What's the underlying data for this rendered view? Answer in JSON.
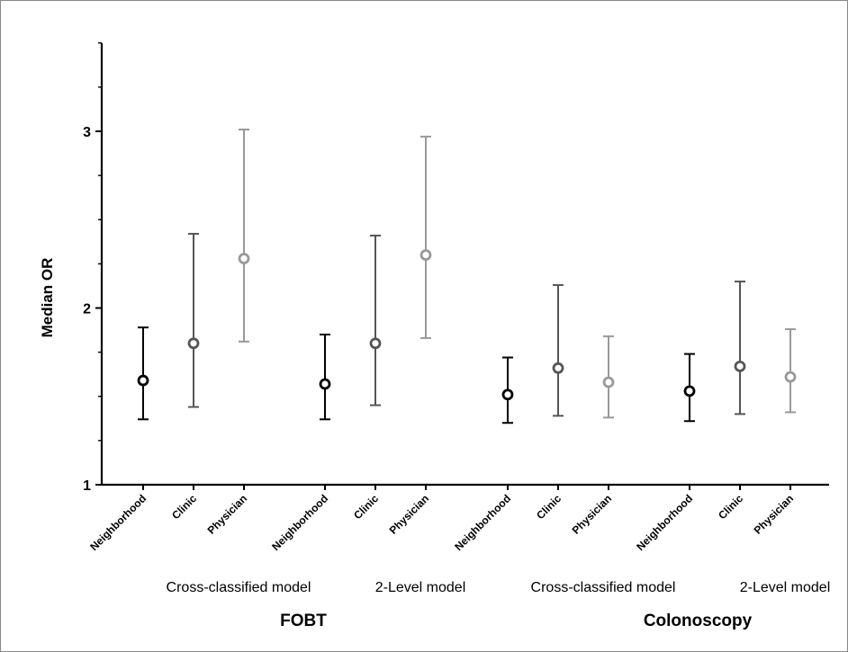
{
  "chart_data": {
    "type": "scatter",
    "ylabel": "Median OR",
    "ylim": [
      1,
      3.5
    ],
    "yticks": [
      "1",
      "2",
      "3"
    ],
    "ytick_values": [
      1,
      2,
      3
    ],
    "grid": false,
    "legend": "none",
    "colors": {
      "Neighborhood": "#000000",
      "Clinic": "#555555",
      "Physician": "#999999"
    },
    "groups": [
      {
        "outcome": "FOBT",
        "model": "Cross-classified model",
        "points": [
          {
            "category": "Neighborhood",
            "median": 1.59,
            "lower": 1.37,
            "upper": 1.89
          },
          {
            "category": "Clinic",
            "median": 1.8,
            "lower": 1.44,
            "upper": 2.42
          },
          {
            "category": "Physician",
            "median": 2.28,
            "lower": 1.81,
            "upper": 3.01
          }
        ]
      },
      {
        "outcome": "FOBT",
        "model": "2-Level model",
        "points": [
          {
            "category": "Neighborhood",
            "median": 1.57,
            "lower": 1.37,
            "upper": 1.85
          },
          {
            "category": "Clinic",
            "median": 1.8,
            "lower": 1.45,
            "upper": 2.41
          },
          {
            "category": "Physician",
            "median": 2.3,
            "lower": 1.83,
            "upper": 2.97
          }
        ]
      },
      {
        "outcome": "Colonoscopy",
        "model": "Cross-classified model",
        "points": [
          {
            "category": "Neighborhood",
            "median": 1.51,
            "lower": 1.35,
            "upper": 1.72
          },
          {
            "category": "Clinic",
            "median": 1.66,
            "lower": 1.39,
            "upper": 2.13
          },
          {
            "category": "Physician",
            "median": 1.58,
            "lower": 1.38,
            "upper": 1.84
          }
        ]
      },
      {
        "outcome": "Colonoscopy",
        "model": "2-Level model",
        "points": [
          {
            "category": "Neighborhood",
            "median": 1.53,
            "lower": 1.36,
            "upper": 1.74
          },
          {
            "category": "Clinic",
            "median": 1.67,
            "lower": 1.4,
            "upper": 2.15
          },
          {
            "category": "Physician",
            "median": 1.61,
            "lower": 1.41,
            "upper": 1.88
          }
        ]
      }
    ],
    "outcome_labels": [
      "FOBT",
      "Colonoscopy"
    ]
  }
}
